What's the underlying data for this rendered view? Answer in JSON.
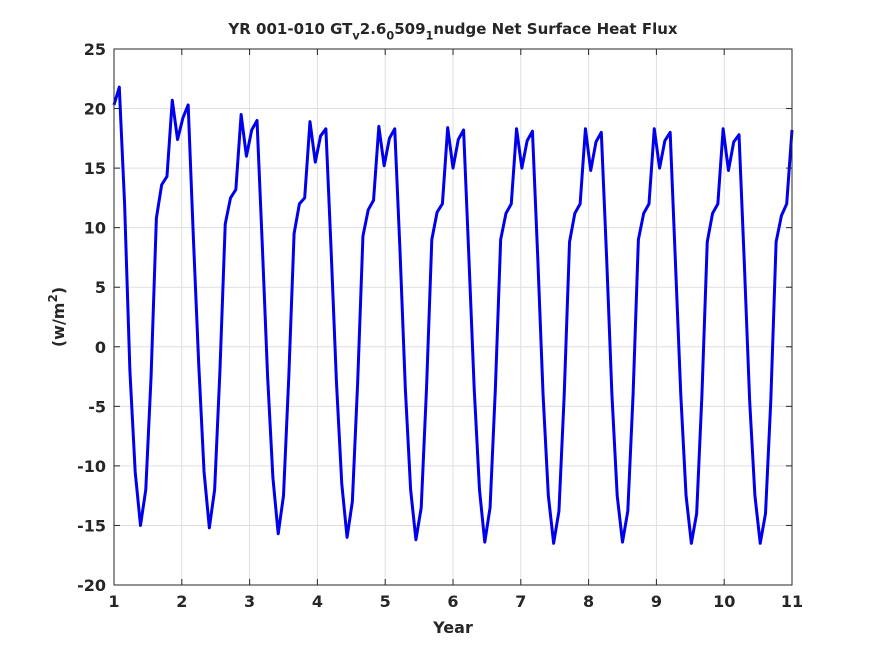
{
  "chart_data": {
    "type": "line",
    "title": {
      "parts": [
        {
          "text": "YR 001-010 GT",
          "style": "normal"
        },
        {
          "text": "v",
          "style": "sub"
        },
        {
          "text": "2.6",
          "style": "normal"
        },
        {
          "text": "0",
          "style": "sub"
        },
        {
          "text": "509",
          "style": "normal"
        },
        {
          "text": "1",
          "style": "sub"
        },
        {
          "text": "nudge Net Surface Heat Flux",
          "style": "normal"
        }
      ]
    },
    "xlabel": "Year",
    "ylabel": {
      "parts": [
        {
          "text": "(w/m",
          "style": "normal"
        },
        {
          "text": "2",
          "style": "sup"
        },
        {
          "text": ")",
          "style": "normal"
        }
      ]
    },
    "xlim": [
      1,
      11
    ],
    "ylim": [
      -20,
      25
    ],
    "xticks": [
      1,
      2,
      3,
      4,
      5,
      6,
      7,
      8,
      9,
      10,
      11
    ],
    "yticks": [
      -20,
      -15,
      -10,
      -5,
      0,
      5,
      10,
      15,
      20,
      25
    ],
    "grid": true,
    "line_color": "#0000ee",
    "series": [
      {
        "values": [
          20.3,
          21.8,
          12.0,
          -2.0,
          -10.5,
          -15.0,
          -12.0,
          -2.5,
          10.8,
          13.6,
          14.3,
          20.7,
          17.4,
          19.2,
          20.3,
          9.0,
          -1.5,
          -10.5,
          -15.2,
          -12.0,
          -2.0,
          10.3,
          12.5,
          13.2,
          19.5,
          16.0,
          18.2,
          19.0,
          8.5,
          -2.5,
          -11.0,
          -15.7,
          -12.5,
          -2.5,
          9.5,
          12.0,
          12.5,
          18.9,
          15.5,
          17.7,
          18.3,
          8.0,
          -3.0,
          -11.5,
          -16.0,
          -13.0,
          -3.0,
          9.3,
          11.5,
          12.3,
          18.5,
          15.2,
          17.5,
          18.3,
          8.0,
          -3.5,
          -12.0,
          -16.2,
          -13.5,
          -3.5,
          9.0,
          11.3,
          12.0,
          18.4,
          15.0,
          17.4,
          18.2,
          7.5,
          -3.5,
          -12.0,
          -16.4,
          -13.5,
          -3.5,
          9.0,
          11.2,
          12.0,
          18.3,
          15.0,
          17.3,
          18.1,
          7.5,
          -4.0,
          -12.5,
          -16.5,
          -13.8,
          -4.0,
          8.8,
          11.2,
          12.0,
          18.3,
          14.8,
          17.2,
          18.0,
          7.5,
          -4.0,
          -12.5,
          -16.4,
          -13.8,
          -4.0,
          9.0,
          11.2,
          12.0,
          18.3,
          15.0,
          17.3,
          18.0,
          7.0,
          -4.0,
          -12.5,
          -16.5,
          -14.0,
          -4.0,
          8.8,
          11.2,
          12.0,
          18.3,
          14.8,
          17.2,
          17.8,
          7.0,
          -4.5,
          -12.5,
          -16.5,
          -14.0,
          -4.5,
          8.8,
          11.0,
          12.0,
          18.2
        ]
      }
    ]
  }
}
